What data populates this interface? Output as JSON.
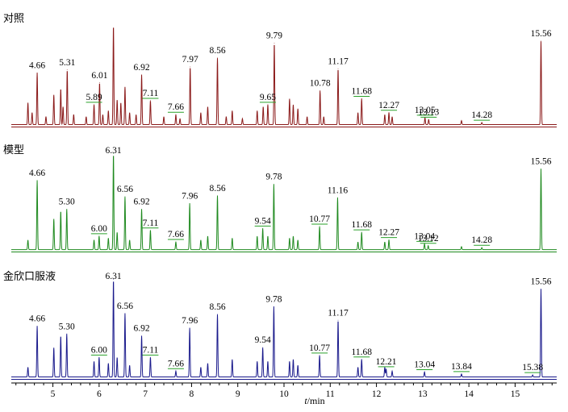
{
  "chart_data": {
    "type": "line",
    "xlabel_italic": "t",
    "xlabel_rest": "/min",
    "xlim": [
      4.1,
      15.9
    ],
    "x_ticks": [
      5,
      6,
      7,
      8,
      9,
      10,
      11,
      12,
      13,
      14,
      15
    ],
    "series": [
      {
        "name": "对照",
        "color": "#8b1a1a",
        "peaks": [
          {
            "t": 4.46,
            "h": 0.22
          },
          {
            "t": 4.55,
            "h": 0.12
          },
          {
            "t": 4.66,
            "h": 0.52,
            "label": "4.66"
          },
          {
            "t": 4.85,
            "h": 0.08
          },
          {
            "t": 5.02,
            "h": 0.3
          },
          {
            "t": 5.17,
            "h": 0.36
          },
          {
            "t": 5.22,
            "h": 0.18
          },
          {
            "t": 5.31,
            "h": 0.55,
            "label": "5.31"
          },
          {
            "t": 5.45,
            "h": 0.1
          },
          {
            "t": 5.72,
            "h": 0.08
          },
          {
            "t": 5.89,
            "h": 0.2,
            "label": "5.89"
          },
          {
            "t": 6.01,
            "h": 0.42,
            "label": "6.01"
          },
          {
            "t": 6.08,
            "h": 0.1
          },
          {
            "t": 6.2,
            "h": 0.14
          },
          {
            "t": 6.31,
            "h": 1.0
          },
          {
            "t": 6.39,
            "h": 0.25
          },
          {
            "t": 6.47,
            "h": 0.22
          },
          {
            "t": 6.56,
            "h": 0.38
          },
          {
            "t": 6.66,
            "h": 0.12
          },
          {
            "t": 6.8,
            "h": 0.1
          },
          {
            "t": 6.92,
            "h": 0.5,
            "label": "6.92"
          },
          {
            "t": 7.11,
            "h": 0.24,
            "label": "7.11"
          },
          {
            "t": 7.4,
            "h": 0.08
          },
          {
            "t": 7.66,
            "h": 0.1,
            "label": "7.66"
          },
          {
            "t": 7.75,
            "h": 0.06
          },
          {
            "t": 7.97,
            "h": 0.58,
            "label": "7.97"
          },
          {
            "t": 8.2,
            "h": 0.12
          },
          {
            "t": 8.35,
            "h": 0.18
          },
          {
            "t": 8.56,
            "h": 0.67,
            "label": "8.56"
          },
          {
            "t": 8.75,
            "h": 0.08
          },
          {
            "t": 8.88,
            "h": 0.14
          },
          {
            "t": 9.1,
            "h": 0.06
          },
          {
            "t": 9.42,
            "h": 0.14
          },
          {
            "t": 9.55,
            "h": 0.18
          },
          {
            "t": 9.65,
            "h": 0.2,
            "label": "9.65"
          },
          {
            "t": 9.79,
            "h": 0.82,
            "label": "9.79"
          },
          {
            "t": 10.12,
            "h": 0.26
          },
          {
            "t": 10.2,
            "h": 0.2
          },
          {
            "t": 10.3,
            "h": 0.16
          },
          {
            "t": 10.5,
            "h": 0.08
          },
          {
            "t": 10.78,
            "h": 0.34,
            "label": "10.78"
          },
          {
            "t": 10.86,
            "h": 0.08
          },
          {
            "t": 11.17,
            "h": 0.56,
            "label": "11.17"
          },
          {
            "t": 11.6,
            "h": 0.12
          },
          {
            "t": 11.68,
            "h": 0.26,
            "label": "11.68"
          },
          {
            "t": 12.18,
            "h": 0.1
          },
          {
            "t": 12.27,
            "h": 0.12,
            "label": "12.27"
          },
          {
            "t": 12.34,
            "h": 0.08
          },
          {
            "t": 13.05,
            "h": 0.07,
            "label": "13.05"
          },
          {
            "t": 13.13,
            "h": 0.05,
            "label": "13.13"
          },
          {
            "t": 13.84,
            "h": 0.04
          },
          {
            "t": 14.28,
            "h": 0.02,
            "label": "14.28"
          },
          {
            "t": 15.56,
            "h": 0.84,
            "label": "15.56"
          }
        ]
      },
      {
        "name": "模型",
        "color": "#1f8a1f",
        "peaks": [
          {
            "t": 4.46,
            "h": 0.1
          },
          {
            "t": 4.66,
            "h": 0.72,
            "label": "4.66"
          },
          {
            "t": 5.02,
            "h": 0.32
          },
          {
            "t": 5.17,
            "h": 0.4
          },
          {
            "t": 5.3,
            "h": 0.42,
            "label": "5.30"
          },
          {
            "t": 5.89,
            "h": 0.1
          },
          {
            "t": 6.0,
            "h": 0.14,
            "label": "6.00"
          },
          {
            "t": 6.2,
            "h": 0.12
          },
          {
            "t": 6.31,
            "h": 1.0,
            "label": "6.31"
          },
          {
            "t": 6.39,
            "h": 0.18
          },
          {
            "t": 6.56,
            "h": 0.55,
            "label": "6.56"
          },
          {
            "t": 6.66,
            "h": 0.1
          },
          {
            "t": 6.92,
            "h": 0.42,
            "label": "6.92"
          },
          {
            "t": 7.11,
            "h": 0.2,
            "label": "7.11"
          },
          {
            "t": 7.66,
            "h": 0.08,
            "label": "7.66"
          },
          {
            "t": 7.96,
            "h": 0.48,
            "label": "7.96"
          },
          {
            "t": 8.2,
            "h": 0.1
          },
          {
            "t": 8.35,
            "h": 0.14
          },
          {
            "t": 8.56,
            "h": 0.56,
            "label": "8.56"
          },
          {
            "t": 8.88,
            "h": 0.12
          },
          {
            "t": 9.42,
            "h": 0.14
          },
          {
            "t": 9.54,
            "h": 0.22,
            "label": "9.54"
          },
          {
            "t": 9.65,
            "h": 0.14
          },
          {
            "t": 9.78,
            "h": 0.68,
            "label": "9.78"
          },
          {
            "t": 10.12,
            "h": 0.12
          },
          {
            "t": 10.2,
            "h": 0.14
          },
          {
            "t": 10.3,
            "h": 0.1
          },
          {
            "t": 10.77,
            "h": 0.24,
            "label": "10.77"
          },
          {
            "t": 11.16,
            "h": 0.54,
            "label": "11.16"
          },
          {
            "t": 11.6,
            "h": 0.08
          },
          {
            "t": 11.68,
            "h": 0.18,
            "label": "11.68"
          },
          {
            "t": 12.18,
            "h": 0.08
          },
          {
            "t": 12.27,
            "h": 0.1,
            "label": "12.27"
          },
          {
            "t": 13.04,
            "h": 0.06,
            "label": "13.04"
          },
          {
            "t": 13.12,
            "h": 0.04,
            "label": "13.12"
          },
          {
            "t": 13.84,
            "h": 0.03
          },
          {
            "t": 14.28,
            "h": 0.02,
            "label": "14.28"
          },
          {
            "t": 15.56,
            "h": 0.84,
            "label": "15.56"
          }
        ]
      },
      {
        "name": "金欣口服液",
        "color": "#1a1a8c",
        "peaks": [
          {
            "t": 4.46,
            "h": 0.1
          },
          {
            "t": 4.66,
            "h": 0.52,
            "label": "4.66"
          },
          {
            "t": 5.02,
            "h": 0.3
          },
          {
            "t": 5.17,
            "h": 0.42
          },
          {
            "t": 5.3,
            "h": 0.44,
            "label": "5.30"
          },
          {
            "t": 5.89,
            "h": 0.16
          },
          {
            "t": 6.0,
            "h": 0.2,
            "label": "6.00"
          },
          {
            "t": 6.2,
            "h": 0.14
          },
          {
            "t": 6.31,
            "h": 1.0,
            "label": "6.31"
          },
          {
            "t": 6.39,
            "h": 0.2
          },
          {
            "t": 6.56,
            "h": 0.65,
            "label": "6.56"
          },
          {
            "t": 6.66,
            "h": 0.12
          },
          {
            "t": 6.92,
            "h": 0.42,
            "label": "6.92"
          },
          {
            "t": 7.11,
            "h": 0.2,
            "label": "7.11"
          },
          {
            "t": 7.66,
            "h": 0.06,
            "label": "7.66"
          },
          {
            "t": 7.96,
            "h": 0.5,
            "label": "7.96"
          },
          {
            "t": 8.2,
            "h": 0.1
          },
          {
            "t": 8.35,
            "h": 0.14
          },
          {
            "t": 8.56,
            "h": 0.64,
            "label": "8.56"
          },
          {
            "t": 8.88,
            "h": 0.18
          },
          {
            "t": 9.42,
            "h": 0.16
          },
          {
            "t": 9.54,
            "h": 0.3,
            "label": "9.54"
          },
          {
            "t": 9.65,
            "h": 0.16
          },
          {
            "t": 9.78,
            "h": 0.72,
            "label": "9.78"
          },
          {
            "t": 10.12,
            "h": 0.16
          },
          {
            "t": 10.2,
            "h": 0.18
          },
          {
            "t": 10.3,
            "h": 0.12
          },
          {
            "t": 10.77,
            "h": 0.22,
            "label": "10.77"
          },
          {
            "t": 11.17,
            "h": 0.58,
            "label": "11.17"
          },
          {
            "t": 11.6,
            "h": 0.1
          },
          {
            "t": 11.68,
            "h": 0.18,
            "label": "11.68"
          },
          {
            "t": 12.18,
            "h": 0.1
          },
          {
            "t": 12.21,
            "h": 0.08,
            "label": "12.21"
          },
          {
            "t": 12.34,
            "h": 0.06
          },
          {
            "t": 13.04,
            "h": 0.05,
            "label": "13.04"
          },
          {
            "t": 13.84,
            "h": 0.03,
            "label": "13.84"
          },
          {
            "t": 15.38,
            "h": 0.02,
            "label": "15.38"
          },
          {
            "t": 15.56,
            "h": 0.9,
            "label": "15.56"
          }
        ]
      }
    ]
  }
}
